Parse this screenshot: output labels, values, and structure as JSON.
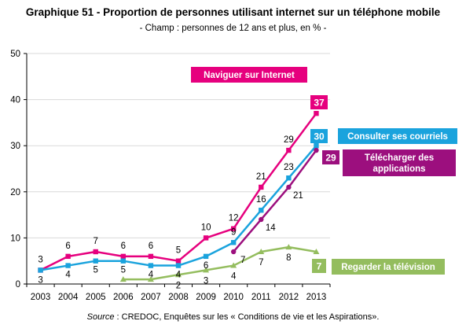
{
  "header": {
    "title": "Graphique 51 - Proportion de personnes utilisant internet sur un téléphone mobile",
    "subtitle": "- Champ : personnes de 12 ans et plus, en % -"
  },
  "footer": {
    "source_label": "Source",
    "source_text": " : CREDOC, Enquêtes sur les « Conditions de vie et les Aspirations»."
  },
  "chart_data": {
    "type": "line",
    "x": [
      "2003",
      "2004",
      "2005",
      "2006",
      "2007",
      "2008",
      "2009",
      "2010",
      "2011",
      "2012",
      "2013"
    ],
    "ylim": [
      0,
      50
    ],
    "yticks": [
      0,
      10,
      20,
      30,
      40,
      50
    ],
    "grid": true,
    "legend": "inline labels at right end of each series",
    "series": [
      {
        "key": "internet",
        "name": "Naviguer sur Internet",
        "color": "#e6007e",
        "marker": "square",
        "values": [
          3,
          6,
          7,
          6,
          6,
          5,
          10,
          12,
          21,
          29,
          37
        ],
        "end_label": "37"
      },
      {
        "key": "courriels",
        "name": "Consulter ses courriels",
        "color": "#1aa3dd",
        "marker": "square",
        "values": [
          3,
          4,
          5,
          5,
          4,
          4,
          6,
          9,
          16,
          23,
          30
        ],
        "end_label": "30"
      },
      {
        "key": "applications",
        "name": "Télécharger des applications",
        "color": "#9c0f7e",
        "marker": "circle",
        "values": [
          null,
          null,
          null,
          null,
          null,
          null,
          null,
          7,
          14,
          21,
          29
        ],
        "end_label": "29"
      },
      {
        "key": "television",
        "name": "Regarder la télévision",
        "color": "#94bd5e",
        "marker": "triangle",
        "values": [
          null,
          null,
          null,
          1,
          1,
          2,
          3,
          4,
          7,
          8,
          7
        ],
        "end_label": "7"
      }
    ],
    "point_labels": [
      {
        "series": "internet",
        "x": "2003",
        "text": "3"
      },
      {
        "series": "internet",
        "x": "2004",
        "text": "6"
      },
      {
        "series": "internet",
        "x": "2005",
        "text": "7"
      },
      {
        "series": "internet",
        "x": "2006",
        "text": "6"
      },
      {
        "series": "internet",
        "x": "2007",
        "text": "6"
      },
      {
        "series": "internet",
        "x": "2008",
        "text": "5"
      },
      {
        "series": "internet",
        "x": "2009",
        "text": "10"
      },
      {
        "series": "internet",
        "x": "2010",
        "text": "12"
      },
      {
        "series": "internet",
        "x": "2011",
        "text": "21"
      },
      {
        "series": "internet",
        "x": "2012",
        "text": "29"
      },
      {
        "series": "courriels",
        "x": "2003",
        "text": "3"
      },
      {
        "series": "courriels",
        "x": "2004",
        "text": "4"
      },
      {
        "series": "courriels",
        "x": "2005",
        "text": "5"
      },
      {
        "series": "courriels",
        "x": "2006",
        "text": "5"
      },
      {
        "series": "courriels",
        "x": "2007",
        "text": "4"
      },
      {
        "series": "courriels",
        "x": "2008",
        "text": "4"
      },
      {
        "series": "courriels",
        "x": "2009",
        "text": "6"
      },
      {
        "series": "courriels",
        "x": "2010",
        "text": "9"
      },
      {
        "series": "courriels",
        "x": "2011",
        "text": "16"
      },
      {
        "series": "courriels",
        "x": "2012",
        "text": "23"
      },
      {
        "series": "applications",
        "x": "2010",
        "text": "7"
      },
      {
        "series": "applications",
        "x": "2011",
        "text": "14"
      },
      {
        "series": "applications",
        "x": "2012",
        "text": "21"
      },
      {
        "series": "television",
        "x": "2008",
        "text": "2"
      },
      {
        "series": "television",
        "x": "2009",
        "text": "3"
      },
      {
        "series": "television",
        "x": "2010",
        "text": "4"
      },
      {
        "series": "television",
        "x": "2011",
        "text": "7"
      },
      {
        "series": "television",
        "x": "2012",
        "text": "8"
      }
    ]
  }
}
